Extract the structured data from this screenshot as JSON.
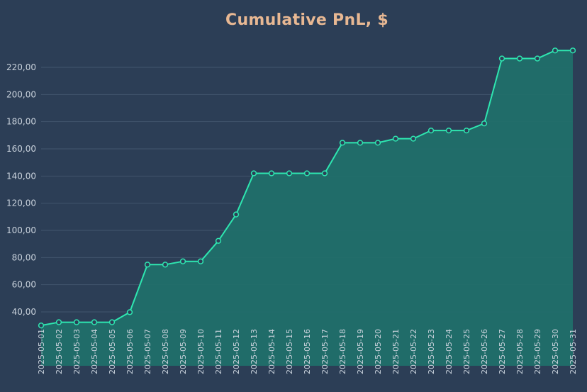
{
  "chart_data": {
    "type": "area",
    "title": "Cumulative PnL, $",
    "xlabel": "",
    "ylabel": "",
    "ylim": [
      28,
      234
    ],
    "yticks": [
      40,
      60,
      80,
      100,
      120,
      140,
      160,
      180,
      200,
      220
    ],
    "ytick_labels": [
      "40,00",
      "60,00",
      "80,00",
      "100,00",
      "120,00",
      "140,00",
      "160,00",
      "180,00",
      "200,00",
      "220,00"
    ],
    "grid": true,
    "legend": "none",
    "colors": {
      "line": "#2ee6b0",
      "fill": "#20706a",
      "background": "#2c3e56",
      "title": "#e8b893"
    },
    "x": [
      "2025-05-01",
      "2025-05-02",
      "2025-05-03",
      "2025-05-04",
      "2025-05-05",
      "2025-05-06",
      "2025-05-07",
      "2025-05-08",
      "2025-05-09",
      "2025-05-10",
      "2025-05-11",
      "2025-05-12",
      "2025-05-13",
      "2025-05-14",
      "2025-05-15",
      "2025-05-16",
      "2025-05-17",
      "2025-05-18",
      "2025-05-19",
      "2025-05-20",
      "2025-05-21",
      "2025-05-22",
      "2025-05-23",
      "2025-05-24",
      "2025-05-25",
      "2025-05-26",
      "2025-05-27",
      "2025-05-28",
      "2025-05-29",
      "2025-05-30",
      "2025-05-31"
    ],
    "series": [
      {
        "values": [
          30,
          32.4,
          32.4,
          32.4,
          32.4,
          39.8,
          74.8,
          74.8,
          77.2,
          77.2,
          92.3,
          111.7,
          142,
          142,
          142,
          142,
          142,
          164.5,
          164.5,
          164.5,
          167.5,
          167.5,
          173.5,
          173.5,
          173.5,
          178.7,
          226.5,
          226.5,
          226.5,
          232.4,
          232.4
        ]
      }
    ]
  }
}
